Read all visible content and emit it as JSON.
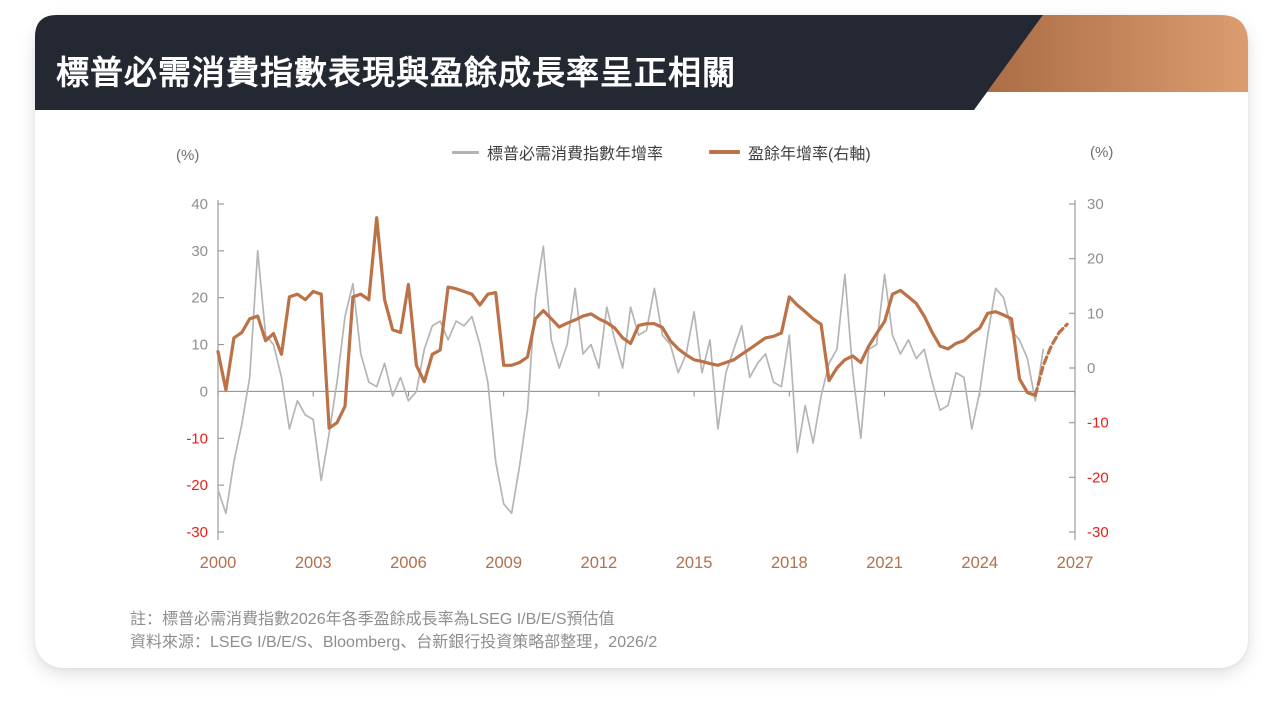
{
  "header": {
    "title": "標普必需消費指數表現與盈餘成長率呈正相關",
    "bar_color": "#232833",
    "accent_gradient_start": "#ab6d45",
    "accent_gradient_end": "#db9c6f"
  },
  "legend": [
    {
      "label": "標普必需消費指數年增率",
      "color": "#b3b3b3"
    },
    {
      "label": "盈餘年增率(右軸)",
      "color": "#bc7247"
    }
  ],
  "axes": {
    "left_unit": "(%)",
    "right_unit": "(%)"
  },
  "footnotes": {
    "note": "註：標普必需消費指數2026年各季盈餘成長率為LSEG I/B/E/S預估值",
    "source": "資料來源：LSEG I/B/E/S、Bloomberg、台新銀行投資策略部整理，2026/2"
  },
  "chart_data": {
    "type": "line",
    "title": "標普必需消費指數表現與盈餘成長率呈正相關",
    "x_ticks": [
      2000,
      2003,
      2006,
      2009,
      2012,
      2015,
      2018,
      2021,
      2024,
      2027
    ],
    "x_range": [
      2000,
      2027
    ],
    "left_axis": {
      "unit": "(%)",
      "min": -30,
      "max": 40,
      "ticks": [
        40,
        30,
        20,
        10,
        0,
        -10,
        -20,
        -30
      ]
    },
    "right_axis": {
      "unit": "(%)",
      "min": -30,
      "max": 30,
      "ticks": [
        30,
        20,
        10,
        0,
        -10,
        -20,
        -30
      ]
    },
    "grid": "zero-line-only",
    "legend_position": "top-center",
    "colors": {
      "label": "#8f8f8f",
      "negative_label": "#e7201c",
      "year_label": "#b2704c",
      "axis": "#9b9b9b",
      "zero_line": "#8a8a8a"
    },
    "series": [
      {
        "id": "index-yoy-line",
        "name": "標普必需消費指數年增率",
        "axis": "left",
        "color": "#b5b5b5",
        "width": 1.7,
        "style": "solid",
        "points": {
          "start": 2000.0,
          "step": 0.25,
          "values": [
            -21,
            -26,
            -15,
            -7,
            3,
            30,
            12,
            10,
            3,
            -8,
            -2,
            -5,
            -6,
            -19,
            -9,
            2,
            16,
            23,
            8,
            2,
            1,
            6,
            -1,
            3,
            -2,
            0,
            9,
            14,
            15,
            11,
            15,
            14,
            16,
            10,
            2,
            -15,
            -24,
            -26,
            -16,
            -4,
            20,
            31,
            11,
            5,
            10,
            22,
            8,
            10,
            5,
            18,
            11,
            5,
            18,
            12,
            13,
            22,
            12,
            10,
            4,
            8,
            17,
            4,
            11,
            -8,
            4,
            9,
            14,
            3,
            6,
            8,
            2,
            1,
            12,
            -13,
            -3,
            -11,
            -1,
            6,
            9,
            25,
            4,
            -10,
            9,
            10,
            25,
            12,
            8,
            11,
            7,
            9,
            2,
            -4,
            -3,
            4,
            3,
            -8,
            0,
            12,
            22,
            20,
            13,
            11,
            7,
            -2,
            9
          ]
        }
      },
      {
        "id": "earnings-yoy-line",
        "name": "盈餘年增率(右軸)",
        "axis": "right",
        "color": "#bc7247",
        "width": 3.2,
        "style": "solid",
        "points": {
          "start": 2000.0,
          "step": 0.25,
          "values": [
            3,
            -4,
            5.5,
            6.5,
            9,
            9.5,
            5,
            6.3,
            2.5,
            13,
            13.5,
            12.5,
            14,
            13.5,
            -11,
            -10,
            -7,
            13,
            13.5,
            12.5,
            27.5,
            12.5,
            7,
            6.5,
            15.3,
            0.5,
            -2.5,
            2.5,
            3.3,
            14.8,
            14.5,
            14,
            13.5,
            11.5,
            13.5,
            13.8,
            0.5,
            0.5,
            1,
            2,
            9,
            10.5,
            9,
            7.5,
            8.2,
            8.8,
            9.5,
            9.9,
            9,
            8.3,
            7.3,
            5.5,
            4.5,
            7.8,
            8.1,
            8.1,
            7.4,
            5,
            3.5,
            2.4,
            1.5,
            1.2,
            0.8,
            0.5,
            1,
            1.5,
            2.5,
            3.5,
            4.5,
            5.5,
            5.8,
            6.4,
            13,
            11.5,
            10.3,
            9,
            8,
            -2.3,
            0,
            1.5,
            2.2,
            1,
            4,
            6.3,
            8.5,
            13.5,
            14.2,
            13,
            11.8,
            9.5,
            6.5,
            4,
            3.5,
            4.5,
            5,
            6.3,
            7.3,
            10,
            10.3,
            9.7,
            9,
            -2,
            -4.5,
            -5
          ]
        }
      },
      {
        "id": "earnings-yoy-forecast-line",
        "name": "盈餘年增率(右軸) 2026年預估",
        "axis": "right",
        "color": "#bc7247",
        "width": 3.2,
        "style": "dashed",
        "points": {
          "start": 2025.75,
          "step": 0.25,
          "values": [
            -5,
            0.5,
            4,
            6.5,
            8
          ]
        }
      }
    ]
  }
}
